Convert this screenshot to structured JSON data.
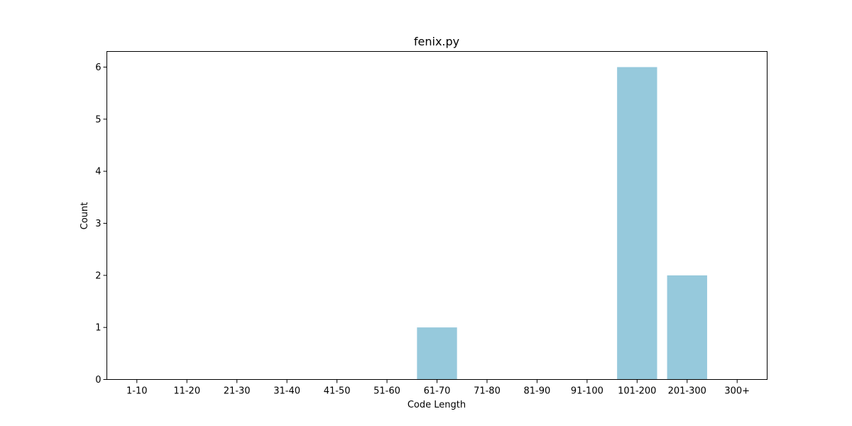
{
  "chart_data": {
    "type": "bar",
    "title": "fenix.py",
    "xlabel": "Code Length",
    "ylabel": "Count",
    "categories": [
      "1-10",
      "11-20",
      "21-30",
      "31-40",
      "41-50",
      "51-60",
      "61-70",
      "71-80",
      "81-90",
      "91-100",
      "101-200",
      "201-300",
      "300+"
    ],
    "values": [
      0,
      0,
      0,
      0,
      0,
      0,
      1,
      0,
      0,
      0,
      6,
      2,
      0
    ],
    "ylim": [
      0,
      6.3
    ],
    "yticks": [
      0,
      1,
      2,
      3,
      4,
      5,
      6
    ],
    "bar_color": "#96c9dc",
    "grid": false,
    "legend": "none"
  }
}
